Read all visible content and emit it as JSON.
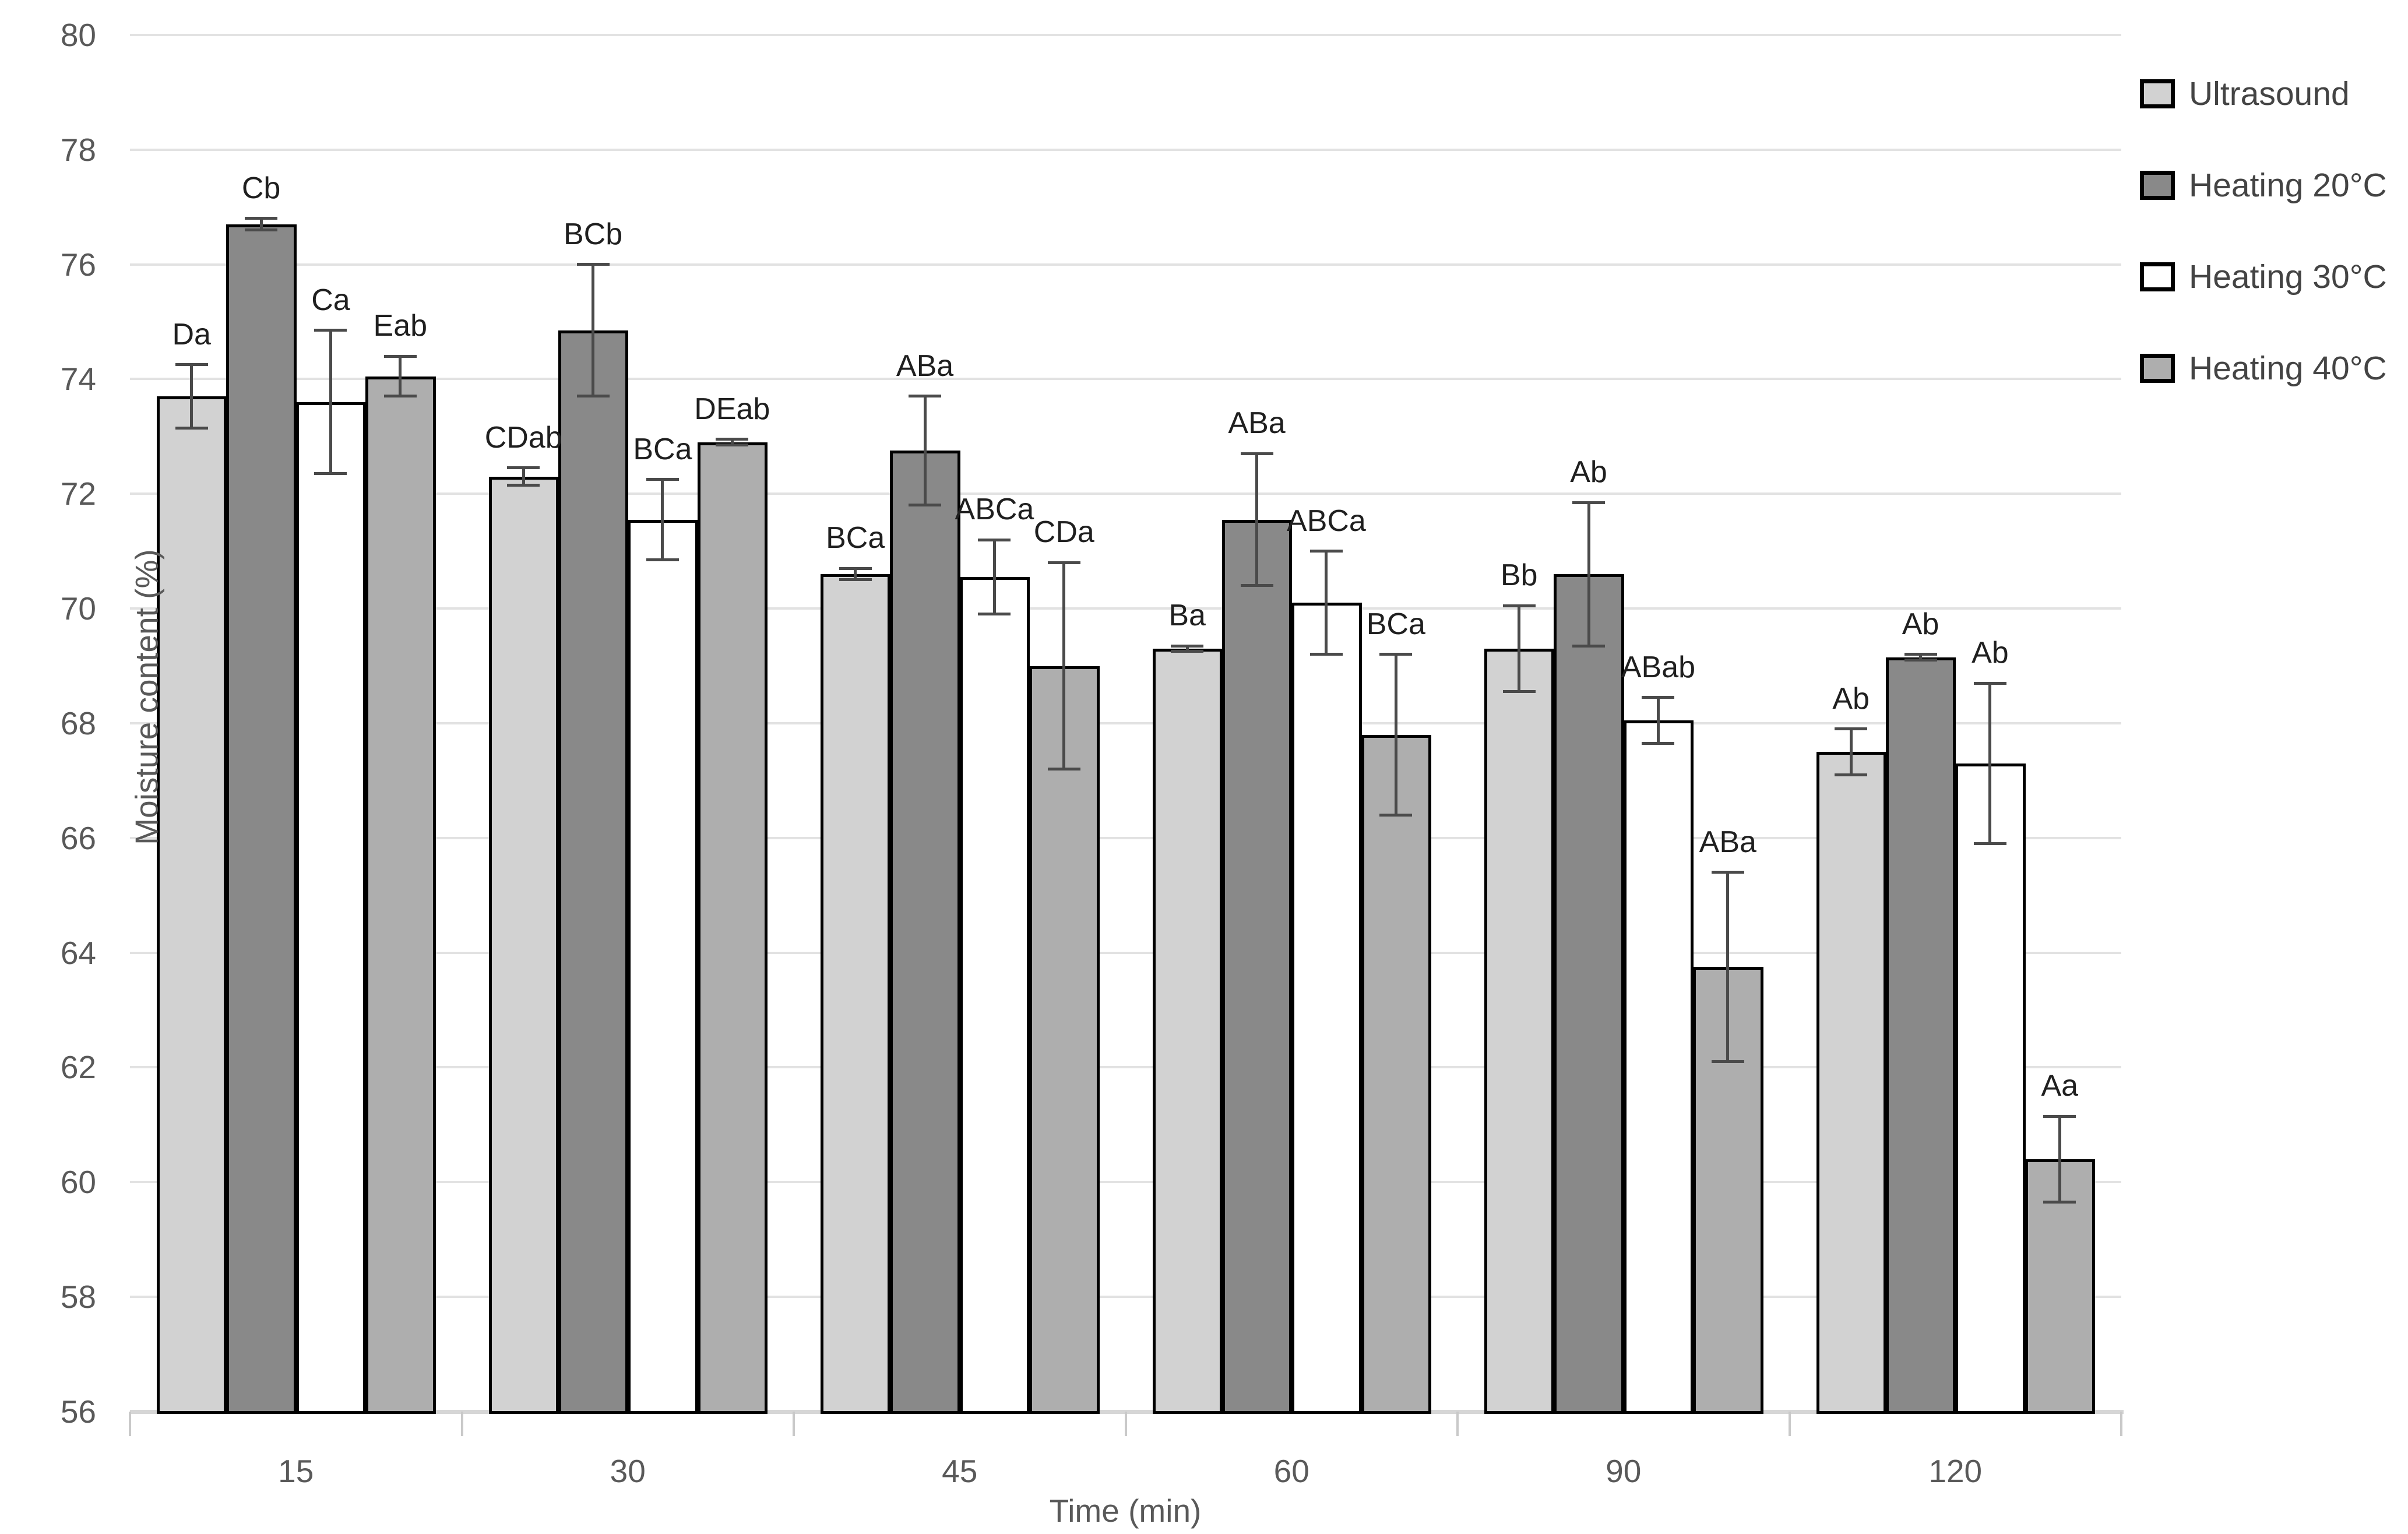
{
  "chart_data": {
    "type": "bar",
    "title": "",
    "xlabel": "Time (min)",
    "ylabel": "Moisture content (%)",
    "ylim": [
      56,
      80
    ],
    "ytick_step": 2,
    "y_ticks": [
      56,
      58,
      60,
      62,
      64,
      66,
      68,
      70,
      72,
      74,
      76,
      78,
      80
    ],
    "grid": true,
    "legend_position": "right",
    "categories": [
      "15",
      "30",
      "45",
      "60",
      "90",
      "120"
    ],
    "series": [
      {
        "name": "Ultrasound",
        "color": "#d2d2d2",
        "values": [
          73.7,
          72.3,
          70.6,
          69.3,
          69.3,
          67.5
        ],
        "errors": [
          0.55,
          0.15,
          0.1,
          0.05,
          0.75,
          0.4
        ],
        "labels": [
          "Da",
          "CDab",
          "BCa",
          "Ba",
          "Bb",
          "Ab"
        ]
      },
      {
        "name": "Heating 20°C",
        "color": "#898989",
        "values": [
          76.7,
          74.85,
          72.75,
          71.55,
          70.6,
          69.15
        ],
        "errors": [
          0.1,
          1.15,
          0.95,
          1.15,
          1.25,
          0.05
        ],
        "labels": [
          "Cb",
          "BCb",
          "ABa",
          "ABa",
          "Ab",
          "Ab"
        ]
      },
      {
        "name": "Heating 30°C",
        "color": "#ffffff",
        "values": [
          73.6,
          71.55,
          70.55,
          70.1,
          68.05,
          67.3
        ],
        "errors": [
          1.25,
          0.7,
          0.65,
          0.9,
          0.4,
          1.4
        ],
        "labels": [
          "Ca",
          "BCa",
          "ABCa",
          "ABCa",
          "ABab",
          "Ab"
        ]
      },
      {
        "name": "Heating 40°C",
        "color": "#aeaeae",
        "values": [
          74.05,
          72.9,
          69.0,
          67.8,
          63.75,
          60.4
        ],
        "errors": [
          0.35,
          0.05,
          1.8,
          1.4,
          1.65,
          0.75
        ],
        "labels": [
          "Eab",
          "DEab",
          "CDa",
          "BCa",
          "ABa",
          "Aa"
        ]
      }
    ],
    "colors": {
      "bar_border": "#000000",
      "error_bar": "#4a4a4a",
      "gridline": "#e2e2e2",
      "axis_line": "#d6d6d6",
      "tick_text": "#595959",
      "data_label_text": "#1f1f1f"
    }
  }
}
